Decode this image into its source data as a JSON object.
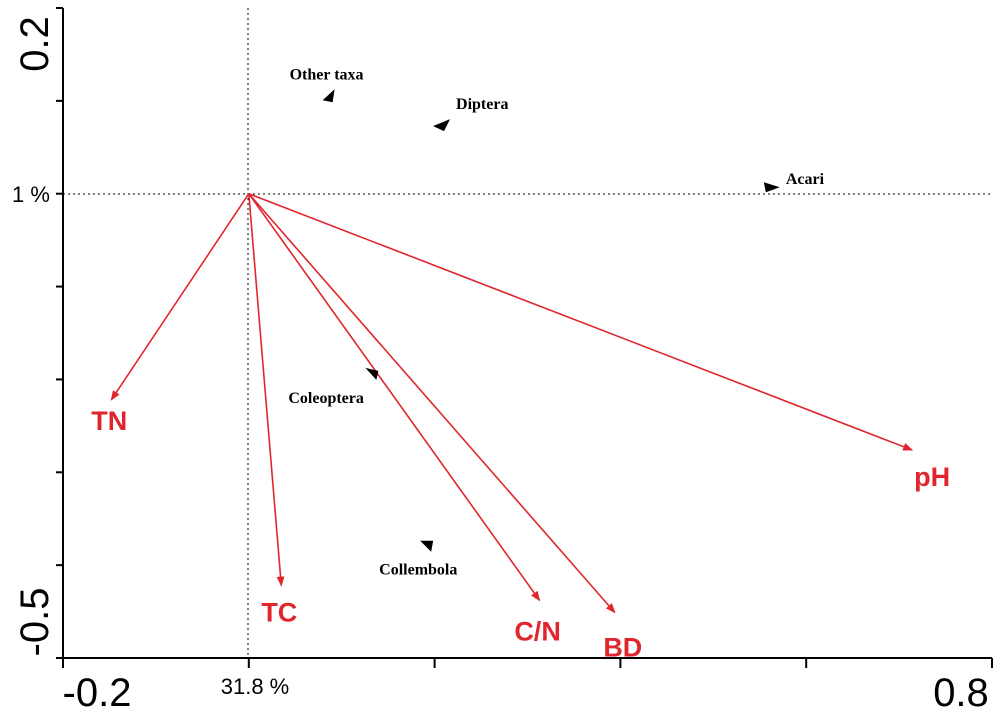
{
  "chart_data": {
    "type": "scatter",
    "subtype": "ordination-biplot",
    "title": "",
    "xlim": [
      -0.2,
      0.8
    ],
    "ylim": [
      -0.5,
      0.2
    ],
    "x_ticks": [
      -0.2,
      0.0,
      0.2,
      0.4,
      0.6,
      0.8
    ],
    "y_ticks": [
      -0.5,
      -0.4,
      -0.3,
      -0.2,
      -0.1,
      0.0,
      0.1,
      0.2
    ],
    "x_tick_labels": [
      "-0.2",
      "0.8"
    ],
    "y_tick_labels": [
      "0.2",
      "-0.5"
    ],
    "x_axis_label": "31.8 %",
    "y_axis_label": "1 %",
    "grid": false,
    "reference_lines": "dashed lines at x = 0 and y = 0",
    "colors": {
      "arrows": "#e0262c",
      "species": "#000000",
      "axes": "#000000"
    },
    "species": [
      {
        "name": "Other taxa",
        "x": 0.087,
        "y": 0.106
      },
      {
        "name": "Diptera",
        "x": 0.208,
        "y": 0.075
      },
      {
        "name": "Acari",
        "x": 0.563,
        "y": 0.007
      },
      {
        "name": "Coleoptera",
        "x": 0.133,
        "y": -0.193
      },
      {
        "name": "Collembola",
        "x": 0.192,
        "y": -0.378
      }
    ],
    "environmental_variables": [
      {
        "name": "TN",
        "x": -0.148,
        "y": -0.222
      },
      {
        "name": "TC",
        "x": 0.035,
        "y": -0.422
      },
      {
        "name": "C/N",
        "x": 0.313,
        "y": -0.438
      },
      {
        "name": "BD",
        "x": 0.394,
        "y": -0.451
      },
      {
        "name": "pH",
        "x": 0.714,
        "y": -0.276
      }
    ]
  }
}
